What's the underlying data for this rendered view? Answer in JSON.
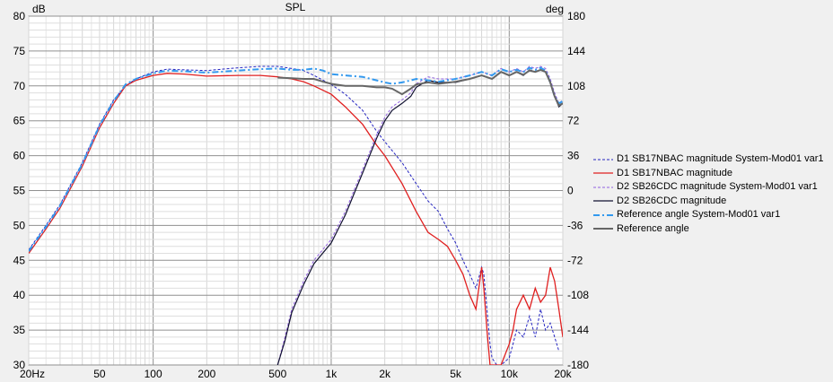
{
  "chart_data": {
    "type": "line",
    "title": "SPL",
    "ylabel_left": "dB",
    "ylabel_right": "deg",
    "x_scale": "log",
    "xlim": [
      20,
      20000
    ],
    "ylim_left": [
      30,
      80
    ],
    "ylim_right": [
      -180,
      180
    ],
    "grid": true,
    "legend_position": "right",
    "x_tick_labels": [
      "20Hz",
      "50",
      "100",
      "200",
      "500",
      "1k",
      "2k",
      "5k",
      "10k",
      "20k"
    ],
    "x_tick_values": [
      20,
      50,
      100,
      200,
      500,
      1000,
      2000,
      5000,
      10000,
      20000
    ],
    "y_left_ticks": [
      30,
      35,
      40,
      45,
      50,
      55,
      60,
      65,
      70,
      75,
      80
    ],
    "y_right_ticks": [
      -180,
      -144,
      -108,
      -72,
      -36,
      0,
      36,
      72,
      108,
      144,
      180
    ],
    "series": [
      {
        "name": "D1 SB17NBAC magnitude System-Mod01 var1",
        "color": "#2424c0",
        "dash": "3,2",
        "axis": "left",
        "width": 1,
        "x": [
          20,
          25,
          30,
          40,
          50,
          60,
          70,
          80,
          100,
          120,
          150,
          200,
          300,
          400,
          500,
          600,
          700,
          800,
          1000,
          1200,
          1500,
          1800,
          2000,
          2500,
          3000,
          3500,
          4000,
          4500,
          5000,
          5500,
          6000,
          6500,
          7000,
          7200,
          7500,
          7800,
          8000,
          8500,
          9000,
          10000,
          10500,
          11000,
          12000,
          13000,
          14000,
          15000,
          16000,
          17000,
          18000,
          19000
        ],
        "y": [
          46.5,
          50,
          53,
          59,
          64.5,
          68,
          70,
          71,
          72,
          72.4,
          72.3,
          72.2,
          72.6,
          72.8,
          72.8,
          72.5,
          72.2,
          71.5,
          70.2,
          68.8,
          66.5,
          63.5,
          62,
          59,
          56,
          53.5,
          52,
          49.5,
          47.5,
          45,
          43,
          41,
          44,
          43,
          38,
          33,
          31,
          30,
          30,
          31,
          33,
          35,
          34,
          37,
          34,
          38,
          35,
          36,
          34,
          32
        ]
      },
      {
        "name": "D1 SB17NBAC magnitude",
        "color": "#e02020",
        "dash": "",
        "axis": "left",
        "width": 1.3,
        "x": [
          20,
          25,
          30,
          40,
          50,
          60,
          70,
          80,
          100,
          120,
          150,
          200,
          300,
          400,
          500,
          600,
          700,
          800,
          1000,
          1200,
          1500,
          1800,
          2000,
          2500,
          3000,
          3500,
          4000,
          4500,
          5000,
          5500,
          6000,
          6500,
          7000,
          7200,
          7500,
          7800,
          8000,
          8500,
          9000,
          10000,
          10500,
          11000,
          12000,
          13000,
          14000,
          15000,
          16000,
          17000,
          18000,
          19000,
          20000
        ],
        "y": [
          46,
          49.5,
          52.5,
          58.5,
          64,
          67.5,
          70,
          70.8,
          71.5,
          71.8,
          71.7,
          71.4,
          71.5,
          71.5,
          71.3,
          71,
          70.6,
          70,
          68.8,
          67,
          64.5,
          61.5,
          60,
          56,
          52,
          49,
          48,
          47,
          45,
          43,
          40,
          38,
          44,
          41,
          35,
          30,
          30,
          30,
          30,
          33,
          35,
          38,
          40,
          38,
          41,
          39,
          40,
          44,
          42,
          38,
          34
        ]
      },
      {
        "name": "D2 SB26CDC magnitude System-Mod01 var1",
        "color": "#9060e0",
        "dash": "3,2",
        "axis": "left",
        "width": 1,
        "x": [
          500,
          550,
          600,
          700,
          800,
          1000,
          1200,
          1500,
          1800,
          2000,
          2200,
          2500,
          2800,
          3000,
          3500,
          4000,
          5000,
          6000,
          7000,
          8000,
          9000,
          10000,
          11000,
          12000,
          13000,
          14000,
          15000,
          16000,
          17000,
          18000,
          19000,
          20000
        ],
        "y": [
          30,
          34,
          38,
          42,
          45,
          48,
          52,
          58,
          63,
          65.5,
          67,
          68,
          69,
          70.3,
          71.3,
          71,
          71,
          71.5,
          72,
          71.5,
          72.5,
          72,
          72.5,
          72,
          72.8,
          72.5,
          72.8,
          72.5,
          71,
          69,
          67.5,
          68
        ]
      },
      {
        "name": "D2 SB26CDC magnitude",
        "color": "#101030",
        "dash": "",
        "axis": "left",
        "width": 1.2,
        "x": [
          500,
          550,
          600,
          700,
          800,
          1000,
          1200,
          1500,
          1800,
          2000,
          2200,
          2500,
          2800,
          3000,
          3500,
          4000,
          5000,
          6000,
          7000,
          8000,
          9000,
          10000,
          11000,
          12000,
          13000,
          14000,
          15000,
          16000,
          17000,
          18000,
          19000,
          20000
        ],
        "y": [
          30,
          33.5,
          37.5,
          41.5,
          44.5,
          47.5,
          51.5,
          57.5,
          62.5,
          65,
          66.5,
          67.5,
          68.5,
          69.8,
          70.8,
          70.5,
          70.5,
          71,
          71.5,
          71,
          72,
          71.5,
          72,
          71.5,
          72.3,
          72,
          72.3,
          72,
          70.5,
          68.5,
          67,
          67.5
        ]
      },
      {
        "name": "Reference angle System-Mod01 var1",
        "color": "#3399ee",
        "dash": "7,3,2,3",
        "axis": "left",
        "width": 2,
        "x": [
          20,
          25,
          30,
          40,
          50,
          60,
          70,
          80,
          100,
          120,
          150,
          200,
          300,
          400,
          500,
          600,
          700,
          800,
          900,
          1000,
          1200,
          1500,
          1800,
          2000,
          2200,
          2500,
          2800,
          3000,
          3500,
          4000,
          5000,
          6000,
          7000,
          8000,
          9000,
          10000,
          11000,
          12000,
          13000,
          14000,
          15000,
          16000,
          17000,
          18000,
          19000,
          20000
        ],
        "y": [
          46.3,
          49.8,
          52.8,
          58.8,
          64.3,
          67.8,
          70.2,
          71,
          71.8,
          72.2,
          72.1,
          71.9,
          72.2,
          72.4,
          72.5,
          72.3,
          72.3,
          72.5,
          72.2,
          71.7,
          71.5,
          71.3,
          70.8,
          70.5,
          70.3,
          70.5,
          70.8,
          71,
          70.8,
          70.6,
          71,
          71.5,
          72,
          71.5,
          72.4,
          72,
          72.3,
          72,
          72.6,
          72.3,
          72.6,
          72.2,
          70.5,
          68.5,
          67.5,
          67.8
        ]
      },
      {
        "name": "Reference angle",
        "color": "#666666",
        "dash": "",
        "axis": "left",
        "width": 2,
        "x": [
          500,
          600,
          700,
          800,
          900,
          1000,
          1200,
          1500,
          1800,
          2000,
          2200,
          2500,
          2800,
          3000,
          3500,
          4000,
          5000,
          6000,
          7000,
          8000,
          9000,
          10000,
          11000,
          12000,
          13000,
          14000,
          15000,
          16000,
          17000,
          18000,
          19000,
          20000
        ],
        "y": [
          71.2,
          71.1,
          71,
          71,
          70.6,
          70.3,
          70,
          70,
          69.8,
          69.8,
          69.6,
          68.8,
          69.6,
          70.2,
          70.5,
          70.3,
          70.6,
          71,
          71.5,
          71,
          72,
          71.5,
          72,
          71.6,
          72.2,
          72,
          72.3,
          72,
          70.5,
          68.5,
          67.2,
          67.5
        ]
      }
    ]
  }
}
